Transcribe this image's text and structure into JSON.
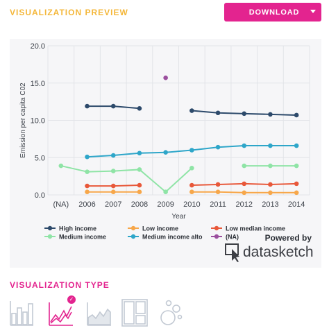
{
  "header": {
    "preview_title": "VISUALIZATION PREVIEW",
    "download_label": "DOWNLOAD"
  },
  "colors": {
    "accent_pink": "#e3248f",
    "title_yellow": "#f4b73a"
  },
  "chart_data": {
    "type": "line",
    "xlabel": "Year",
    "ylabel": "Emission per capita C02",
    "categories": [
      "(NA)",
      "2006",
      "2007",
      "2008",
      "2009",
      "2010",
      "2011",
      "2012",
      "2013",
      "2014"
    ],
    "yticks": [
      "0.0",
      "5.0",
      "10.0",
      "15.0",
      "20.0"
    ],
    "ylim": [
      0,
      20
    ],
    "grid": true,
    "legend_position": "bottom",
    "series": [
      {
        "name": "High income",
        "color": "#2d4a6b",
        "values": [
          null,
          11.9,
          11.9,
          11.6,
          null,
          11.3,
          11.0,
          10.9,
          10.8,
          10.7
        ]
      },
      {
        "name": "Low income",
        "color": "#f7a74a",
        "values": [
          null,
          0.4,
          0.4,
          0.4,
          null,
          0.4,
          0.4,
          0.3,
          0.3,
          0.3
        ]
      },
      {
        "name": "Low median income",
        "color": "#e8583a",
        "values": [
          null,
          1.2,
          1.2,
          1.3,
          null,
          1.3,
          1.4,
          1.5,
          1.4,
          1.5
        ]
      },
      {
        "name": "Medium income",
        "color": "#8fe4a6",
        "values": [
          3.9,
          3.1,
          3.2,
          3.4,
          0.4,
          3.6,
          null,
          3.9,
          3.9,
          3.9
        ]
      },
      {
        "name": "Medium income alto",
        "color": "#2ea6c9",
        "values": [
          null,
          5.1,
          5.3,
          5.6,
          5.7,
          6.0,
          6.4,
          6.6,
          6.6,
          6.6
        ]
      },
      {
        "name": "(NA)",
        "color": "#9b4f9e",
        "values": [
          null,
          null,
          null,
          null,
          15.7,
          null,
          null,
          null,
          null,
          null
        ]
      }
    ]
  },
  "branding": {
    "powered_by": "Powered by",
    "brand_name": "datasketch"
  },
  "viz_type": {
    "title": "VISUALIZATION TYPE",
    "types": [
      {
        "icon": "bar-chart-icon",
        "selected": false
      },
      {
        "icon": "line-chart-icon",
        "selected": true
      },
      {
        "icon": "area-chart-icon",
        "selected": false
      },
      {
        "icon": "treemap-icon",
        "selected": false
      },
      {
        "icon": "bubbles-icon",
        "selected": false
      }
    ]
  }
}
